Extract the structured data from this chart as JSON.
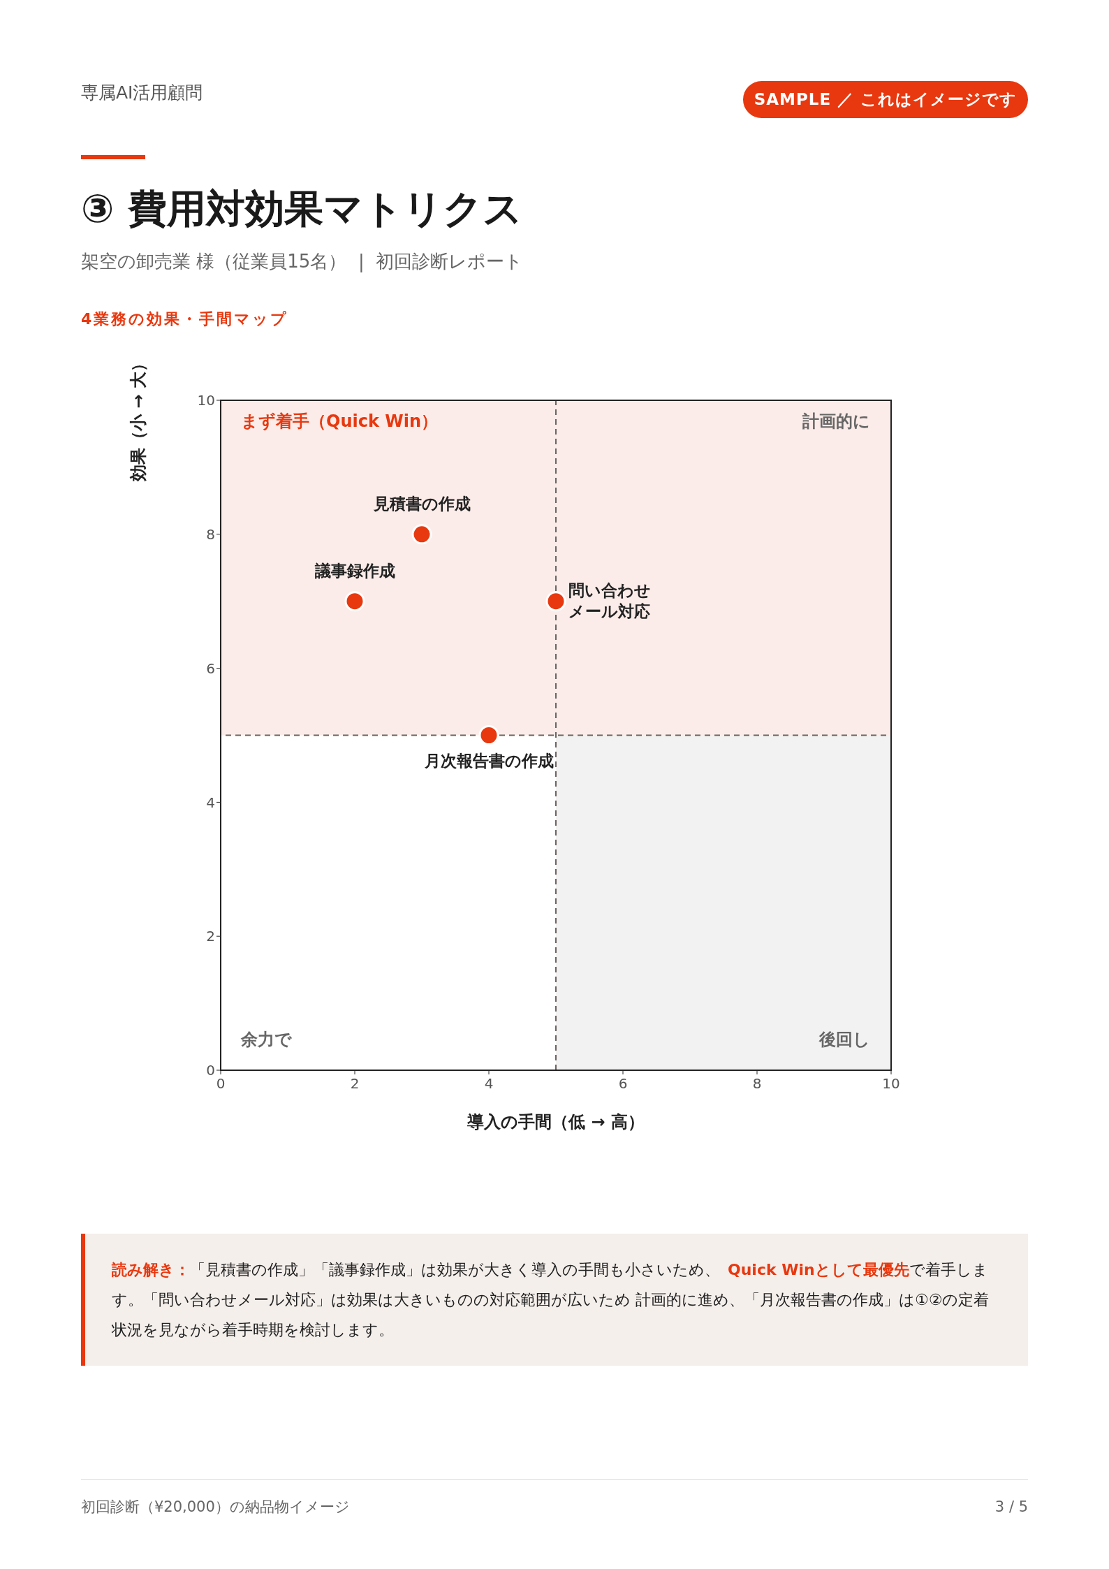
{
  "chart_data": {
    "type": "scatter",
    "title": "③ 費用対効果マトリクス",
    "subtitle": "架空の卸売業 様（従業員15名）  |  初回診断レポート",
    "xlabel": "導入の手間（低 → 高）",
    "ylabel": "効果（小 → 大）",
    "xlim": [
      0,
      10
    ],
    "xticks": [
      0,
      2,
      4,
      6,
      8,
      10
    ],
    "ylim": [
      0,
      10
    ],
    "yticks": [
      0,
      2,
      4,
      6,
      8,
      10
    ],
    "marker": "circle",
    "series": [
      {
        "name": "見積書の作成",
        "color": "#e8380f",
        "x": [
          3
        ],
        "values": [
          8
        ]
      },
      {
        "name": "議事録作成",
        "color": "#e8380f",
        "x": [
          2
        ],
        "values": [
          7
        ]
      },
      {
        "name": "問い合わせメール対応",
        "color": "#e8380f",
        "x": [
          5
        ],
        "values": [
          7
        ]
      },
      {
        "name": "月次報告書の作成",
        "color": "#e8380f",
        "x": [
          4
        ],
        "values": [
          5
        ]
      }
    ],
    "ref_lines": [
      {
        "axis": "x",
        "value": 5,
        "color": "#6b6461",
        "line_style": "dashed"
      },
      {
        "axis": "y",
        "value": 5,
        "color": "#6b6461",
        "line_style": "dashed"
      }
    ],
    "bands": [
      {
        "axis": "x",
        "from": 5,
        "to": 10,
        "color": "#f2f2f2"
      },
      {
        "axis": "y",
        "from": 5,
        "to": 10,
        "color": "#fbece9"
      }
    ],
    "annotations": [
      "専属AI活用顧問",
      "SAMPLE ／ これはイメージです",
      "4業務の効果・手間マップ",
      "まず着手（Quick Win）",
      "計画的に",
      "余力で",
      "後回し",
      "読み解き：",
      "「見積書の作成」「議事録作成」は効果が大きく導入の手間も小さいため、",
      "Quick Winとして最優先",
      "で着手します。「問い合わせメール対応」は効果は大きいものの対応範囲が広いため 計画的に進め、「月次報告書の作成」は①②の定着状況を見ながら着手時期を検討します。",
      "初回診断（¥20,000）の納品物イメージ",
      "3 / 5"
    ]
  }
}
